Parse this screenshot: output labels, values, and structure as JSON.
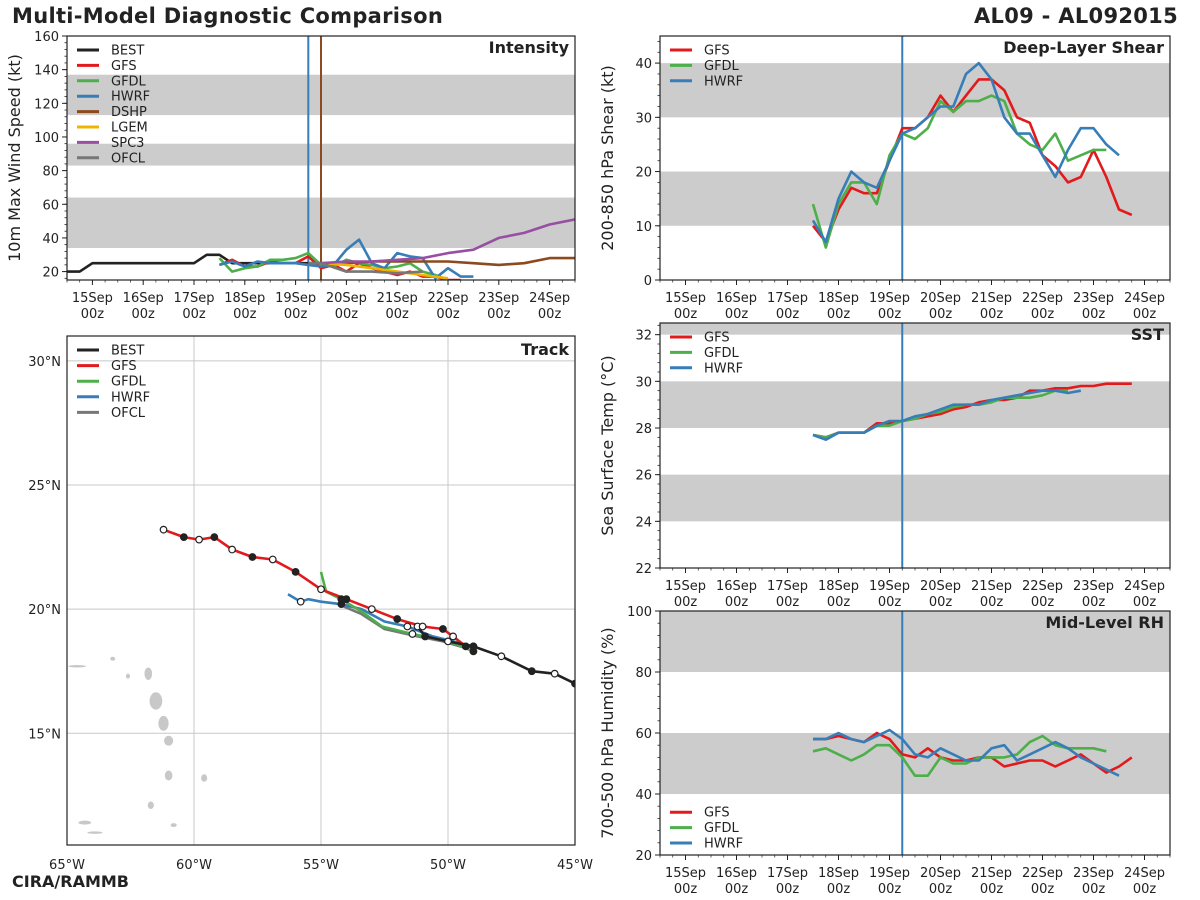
{
  "header": {
    "title": "Multi-Model Diagnostic Comparison",
    "storm_id": "AL09 - AL092015"
  },
  "footer": {
    "credit": "CIRA/RAMMB"
  },
  "colors": {
    "BEST": "#222222",
    "GFS": "#e31a1c",
    "GFDL": "#4daf4a",
    "HWRF": "#377eb8",
    "DSHP": "#8c4a1e",
    "LGEM": "#f0b400",
    "SPC3": "#984ea3",
    "OFCL": "#777777",
    "band": "#cccccc"
  },
  "time_ticks": [
    "15Sep\n00z",
    "16Sep\n00z",
    "17Sep\n00z",
    "18Sep\n00z",
    "19Sep\n00z",
    "20Sep\n00z",
    "21Sep\n00z",
    "22Sep\n00z",
    "23Sep\n00z",
    "24Sep\n00z"
  ],
  "chart_data": [
    {
      "id": "intensity",
      "type": "line",
      "title": "Intensity",
      "ylabel": "10m Max Wind Speed (kt)",
      "ylim": [
        15,
        160
      ],
      "yticks": [
        20,
        40,
        60,
        80,
        100,
        120,
        140,
        160
      ],
      "xlim": [
        -0.5,
        9.5
      ],
      "bands": [
        [
          34,
          64
        ],
        [
          83,
          96
        ],
        [
          113,
          137
        ]
      ],
      "vlines": [
        {
          "x": 4.25,
          "color": "#377eb8"
        },
        {
          "x": 4.5,
          "color": "#8c4a1e"
        }
      ],
      "legend": [
        "BEST",
        "GFS",
        "GFDL",
        "HWRF",
        "DSHP",
        "LGEM",
        "SPC3",
        "OFCL"
      ],
      "series": [
        {
          "name": "BEST",
          "x": [
            -0.5,
            -0.25,
            0,
            0.25,
            0.5,
            0.75,
            1,
            1.25,
            1.5,
            1.75,
            2,
            2.25,
            2.5,
            2.75,
            3,
            3.25,
            3.5,
            3.75,
            4,
            4.25,
            4.5
          ],
          "y": [
            20,
            20,
            25,
            25,
            25,
            25,
            25,
            25,
            25,
            25,
            25,
            30,
            30,
            25,
            25,
            25,
            25,
            25,
            25,
            25,
            25
          ]
        },
        {
          "name": "GFS",
          "x": [
            2.5,
            2.75,
            3,
            3.25,
            3.5,
            3.75,
            4,
            4.25,
            4.5,
            4.75,
            5,
            5.25,
            5.5,
            5.75,
            6,
            6.25,
            6.5,
            6.75,
            7,
            7.25
          ],
          "y": [
            24,
            27,
            23,
            23,
            26,
            25,
            25,
            29,
            22,
            24,
            20,
            25,
            22,
            20,
            18,
            20,
            17,
            17,
            15,
            15
          ]
        },
        {
          "name": "GFDL",
          "x": [
            2.5,
            2.75,
            3,
            3.25,
            3.5,
            3.75,
            4,
            4.25,
            4.5,
            4.75,
            5,
            5.25,
            5.5,
            5.75,
            6,
            6.25,
            6.5,
            6.75,
            7
          ],
          "y": [
            28,
            20,
            22,
            23,
            27,
            27,
            28,
            31,
            24,
            23,
            27,
            25,
            24,
            22,
            23,
            25,
            20,
            18,
            15
          ]
        },
        {
          "name": "HWRF",
          "x": [
            2.5,
            2.75,
            3,
            3.25,
            3.5,
            3.75,
            4,
            4.25,
            4.5,
            4.75,
            5,
            5.25,
            5.5,
            5.75,
            6,
            6.25,
            6.5,
            6.75,
            7,
            7.25,
            7.5
          ],
          "y": [
            24,
            26,
            23,
            26,
            25,
            25,
            25,
            24,
            23,
            24,
            33,
            39,
            25,
            22,
            31,
            29,
            28,
            16,
            22,
            17,
            17
          ]
        },
        {
          "name": "DSHP",
          "x": [
            4.5,
            5,
            5.5,
            6,
            6.5,
            7,
            7.5,
            8,
            8.5,
            9,
            9.5
          ],
          "y": [
            25,
            25,
            26,
            26,
            26,
            26,
            25,
            24,
            25,
            28,
            28
          ]
        },
        {
          "name": "LGEM",
          "x": [
            4.5,
            5,
            5.5,
            6,
            6.5,
            7
          ],
          "y": [
            25,
            24,
            22,
            20,
            18,
            16
          ]
        },
        {
          "name": "SPC3",
          "x": [
            4.5,
            5,
            5.5,
            6,
            6.5,
            7,
            7.5,
            8,
            8.5,
            9,
            9.5
          ],
          "y": [
            25,
            26,
            26,
            27,
            28,
            31,
            33,
            40,
            43,
            48,
            51
          ]
        },
        {
          "name": "OFCL",
          "x": [
            4.25,
            4.5,
            5,
            5.5,
            6,
            6.5
          ],
          "y": [
            25,
            25,
            20,
            20,
            19,
            20
          ]
        }
      ]
    },
    {
      "id": "shear",
      "type": "line",
      "title": "Deep-Layer Shear",
      "ylabel": "200-850 hPa Shear (kt)",
      "ylim": [
        0,
        45
      ],
      "yticks": [
        0,
        10,
        20,
        30,
        40
      ],
      "xlim": [
        -0.5,
        9.5
      ],
      "bands": [
        [
          10,
          20
        ],
        [
          30,
          40
        ]
      ],
      "vlines": [
        {
          "x": 4.25,
          "color": "#377eb8"
        }
      ],
      "legend": [
        "GFS",
        "GFDL",
        "HWRF"
      ],
      "series": [
        {
          "name": "GFS",
          "x": [
            2.5,
            2.75,
            3,
            3.25,
            3.5,
            3.75,
            4,
            4.25,
            4.5,
            4.75,
            5,
            5.25,
            5.5,
            5.75,
            6,
            6.25,
            6.5,
            6.75,
            7,
            7.25,
            7.5,
            7.75,
            8,
            8.25,
            8.5,
            8.75
          ],
          "y": [
            10,
            7,
            13,
            17,
            16,
            16,
            22,
            28,
            28,
            30,
            34,
            31,
            34,
            37,
            37,
            35,
            30,
            29,
            23,
            21,
            18,
            19,
            24,
            19,
            13,
            12
          ]
        },
        {
          "name": "GFDL",
          "x": [
            2.5,
            2.75,
            3,
            3.25,
            3.5,
            3.75,
            4,
            4.25,
            4.5,
            4.75,
            5,
            5.25,
            5.5,
            5.75,
            6,
            6.25,
            6.5,
            6.75,
            7,
            7.25,
            7.5,
            7.75,
            8,
            8.25
          ],
          "y": [
            14,
            6,
            14,
            18,
            18,
            14,
            23,
            27,
            26,
            28,
            33,
            31,
            33,
            33,
            34,
            33,
            27,
            25,
            24,
            27,
            22,
            23,
            24,
            24
          ]
        },
        {
          "name": "HWRF",
          "x": [
            2.5,
            2.75,
            3,
            3.25,
            3.5,
            3.75,
            4,
            4.25,
            4.5,
            4.75,
            5,
            5.25,
            5.5,
            5.75,
            6,
            6.25,
            6.5,
            6.75,
            7,
            7.25,
            7.5,
            7.75,
            8,
            8.25,
            8.5
          ],
          "y": [
            11,
            7,
            15,
            20,
            18,
            17,
            22,
            27,
            28,
            30,
            32,
            32,
            38,
            40,
            37,
            30,
            27,
            27,
            23,
            19,
            24,
            28,
            28,
            25,
            23
          ]
        }
      ]
    },
    {
      "id": "track",
      "type": "map",
      "title": "Track",
      "lon_range": [
        -65,
        -45
      ],
      "lat_range": [
        10.5,
        31
      ],
      "lon_ticks": [
        "65°W",
        "60°W",
        "55°W",
        "50°W",
        "45°W"
      ],
      "lat_ticks": [
        "15°N",
        "20°N",
        "25°N",
        "30°N"
      ],
      "legend": [
        "BEST",
        "GFS",
        "GFDL",
        "HWRF",
        "OFCL"
      ],
      "series": [
        {
          "name": "BEST",
          "lon": [
            -45,
            -45.8,
            -46.7,
            -47.9,
            -49.0,
            -50.0,
            -50.9,
            -51.2
          ],
          "lat": [
            17,
            17.4,
            17.5,
            18.1,
            18.5,
            18.7,
            18.9,
            19.3
          ]
        },
        {
          "name": "GFS",
          "lon": [
            -49.3,
            -49.8,
            -50.2,
            -51.0,
            -52.0,
            -53.0,
            -54.0,
            -55.0,
            -56.0,
            -56.9,
            -57.7,
            -58.5,
            -59.2,
            -59.8,
            -60.4,
            -61.2
          ],
          "lat": [
            18.5,
            18.9,
            19.2,
            19.3,
            19.6,
            20.0,
            20.4,
            20.8,
            21.5,
            22.0,
            22.1,
            22.4,
            22.9,
            22.8,
            22.9,
            23.2
          ]
        },
        {
          "name": "GFDL",
          "lon": [
            -49.0,
            -49.7,
            -50.4,
            -51.4,
            -52.6,
            -53.4,
            -54.2,
            -54.8,
            -55.0
          ],
          "lat": [
            18.3,
            18.6,
            18.8,
            19.0,
            19.3,
            19.9,
            20.4,
            20.7,
            21.5
          ]
        },
        {
          "name": "HWRF",
          "lon": [
            -49.0,
            -49.8,
            -50.6,
            -51.6,
            -52.5,
            -53.4,
            -54.2,
            -55.0,
            -55.5,
            -55.8,
            -56.3
          ],
          "lat": [
            18.5,
            18.7,
            18.9,
            19.3,
            19.5,
            20.0,
            20.2,
            20.3,
            20.4,
            20.3,
            20.6
          ]
        },
        {
          "name": "OFCL",
          "lon": [
            -49.2,
            -50.2,
            -51.2,
            -52.5,
            -53.4,
            -54.1
          ],
          "lat": [
            18.4,
            18.7,
            18.9,
            19.2,
            19.8,
            20.1
          ]
        }
      ]
    },
    {
      "id": "sst",
      "type": "line",
      "title": "SST",
      "ylabel": "Sea Surface Temp (°C)",
      "ylim": [
        22,
        32.5
      ],
      "yticks": [
        22,
        24,
        26,
        28,
        30,
        32
      ],
      "xlim": [
        -0.5,
        9.5
      ],
      "bands": [
        [
          24,
          26
        ],
        [
          28,
          30
        ],
        [
          32,
          34
        ]
      ],
      "vlines": [
        {
          "x": 4.25,
          "color": "#377eb8"
        }
      ],
      "legend": [
        "GFS",
        "GFDL",
        "HWRF"
      ],
      "series": [
        {
          "name": "GFS",
          "x": [
            2.5,
            2.75,
            3,
            3.25,
            3.5,
            3.75,
            4,
            4.25,
            4.5,
            4.75,
            5,
            5.25,
            5.5,
            5.75,
            6,
            6.25,
            6.5,
            6.75,
            7,
            7.25,
            7.5,
            7.75,
            8,
            8.25,
            8.5,
            8.75
          ],
          "y": [
            27.7,
            27.6,
            27.8,
            27.8,
            27.8,
            28.2,
            28.2,
            28.3,
            28.4,
            28.5,
            28.6,
            28.8,
            28.9,
            29.1,
            29.2,
            29.2,
            29.3,
            29.6,
            29.6,
            29.7,
            29.7,
            29.8,
            29.8,
            29.9,
            29.9,
            29.9
          ]
        },
        {
          "name": "GFDL",
          "x": [
            2.5,
            2.75,
            3,
            3.25,
            3.5,
            3.75,
            4,
            4.25,
            4.5,
            4.75,
            5,
            5.25,
            5.5,
            5.75,
            6,
            6.25,
            6.5,
            6.75,
            7,
            7.25,
            7.5
          ],
          "y": [
            27.7,
            27.6,
            27.8,
            27.8,
            27.8,
            28.1,
            28.1,
            28.3,
            28.4,
            28.6,
            28.7,
            28.9,
            29.0,
            29.0,
            29.1,
            29.3,
            29.3,
            29.3,
            29.4,
            29.6,
            29.6
          ]
        },
        {
          "name": "HWRF",
          "x": [
            2.5,
            2.75,
            3,
            3.25,
            3.5,
            3.75,
            4,
            4.25,
            4.5,
            4.75,
            5,
            5.25,
            5.5,
            5.75,
            6,
            6.25,
            6.5,
            6.75,
            7,
            7.25,
            7.5,
            7.75
          ],
          "y": [
            27.7,
            27.5,
            27.8,
            27.8,
            27.8,
            28.1,
            28.3,
            28.3,
            28.5,
            28.6,
            28.8,
            29.0,
            29.0,
            29.0,
            29.2,
            29.3,
            29.4,
            29.5,
            29.6,
            29.6,
            29.5,
            29.6
          ]
        }
      ]
    },
    {
      "id": "rh",
      "type": "line",
      "title": "Mid-Level RH",
      "ylabel": "700-500 hPa Humidity (%)",
      "ylim": [
        20,
        100
      ],
      "yticks": [
        20,
        40,
        60,
        80,
        100
      ],
      "xlim": [
        -0.5,
        9.5
      ],
      "bands": [
        [
          40,
          60
        ],
        [
          80,
          100
        ]
      ],
      "vlines": [
        {
          "x": 4.25,
          "color": "#377eb8"
        }
      ],
      "legend": [
        "GFS",
        "GFDL",
        "HWRF"
      ],
      "legend_position": "bottom-left",
      "series": [
        {
          "name": "GFS",
          "x": [
            2.5,
            2.75,
            3,
            3.25,
            3.5,
            3.75,
            4,
            4.25,
            4.5,
            4.75,
            5,
            5.25,
            5.5,
            5.75,
            6,
            6.25,
            6.5,
            6.75,
            7,
            7.25,
            7.5,
            7.75,
            8,
            8.25,
            8.5,
            8.75
          ],
          "y": [
            58,
            58,
            59,
            58,
            57,
            60,
            58,
            53,
            52,
            55,
            52,
            51,
            51,
            52,
            52,
            49,
            50,
            51,
            51,
            49,
            51,
            53,
            50,
            47,
            49,
            52
          ]
        },
        {
          "name": "GFDL",
          "x": [
            2.5,
            2.75,
            3,
            3.25,
            3.5,
            3.75,
            4,
            4.25,
            4.5,
            4.75,
            5,
            5.25,
            5.5,
            5.75,
            6,
            6.25,
            6.5,
            6.75,
            7,
            7.25,
            7.5,
            7.75,
            8,
            8.25
          ],
          "y": [
            54,
            55,
            53,
            51,
            53,
            56,
            56,
            52,
            46,
            46,
            52,
            50,
            50,
            52,
            52,
            52,
            53,
            57,
            59,
            56,
            55,
            55,
            55,
            54
          ]
        },
        {
          "name": "HWRF",
          "x": [
            2.5,
            2.75,
            3,
            3.25,
            3.5,
            3.75,
            4,
            4.25,
            4.5,
            4.75,
            5,
            5.25,
            5.5,
            5.75,
            6,
            6.25,
            6.5,
            6.75,
            7,
            7.25,
            7.5,
            7.75,
            8,
            8.25,
            8.5
          ],
          "y": [
            58,
            58,
            60,
            58,
            57,
            59,
            61,
            58,
            53,
            52,
            55,
            53,
            51,
            51,
            55,
            56,
            51,
            53,
            55,
            57,
            55,
            52,
            50,
            48,
            46
          ]
        }
      ]
    }
  ]
}
